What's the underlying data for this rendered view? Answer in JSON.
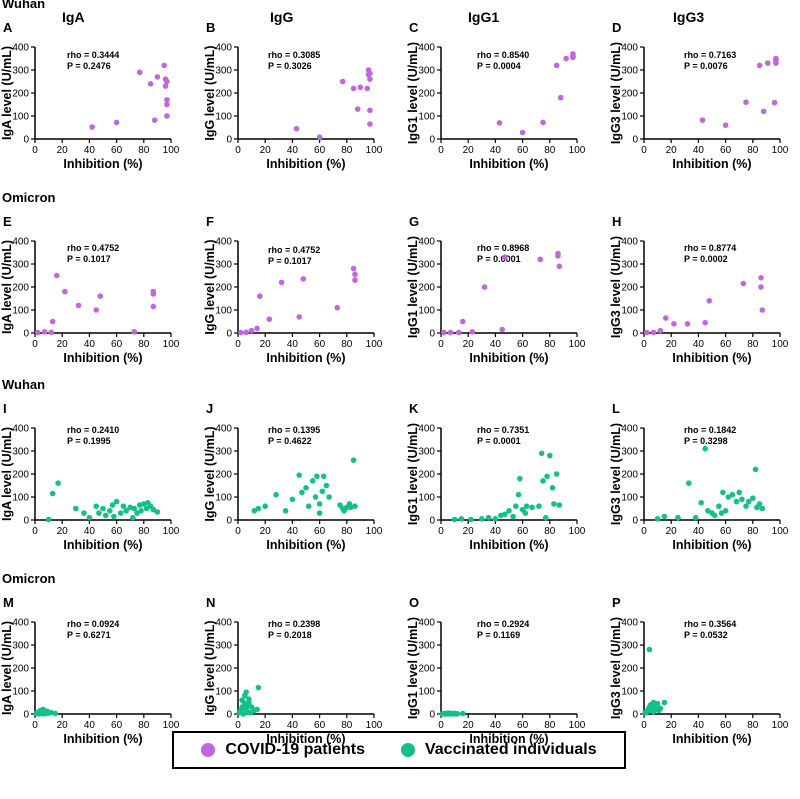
{
  "colors": {
    "covid": "#c266e0",
    "vaccinated": "#14c08a",
    "axis": "#000000"
  },
  "row_labels": [
    "Wuhan",
    "Omicron",
    "Wuhan",
    "Omicron"
  ],
  "column_titles": [
    "IgA",
    "IgG",
    "IgG1",
    "IgG3"
  ],
  "legend": {
    "covid_label": "COVID-19 patients",
    "vaccinated_label": "Vaccinated individuals"
  },
  "chart_data": [
    {
      "panel": "A",
      "type": "scatter",
      "group": "covid",
      "xlabel": "Inhibition (%)",
      "ylabel": "IgA level (U/mL)",
      "xlim": [
        0,
        100
      ],
      "ylim": [
        0,
        400
      ],
      "x_ticks": [
        "0",
        "20",
        "40",
        "60",
        "80",
        "100"
      ],
      "y_ticks": [
        "0",
        "100",
        "200",
        "300",
        "400"
      ],
      "rho": "rho = 0.3444",
      "p": "P = 0.2476",
      "x": [
        42,
        60,
        77,
        85,
        88,
        90,
        95,
        96,
        96,
        97,
        97,
        97,
        97
      ],
      "y": [
        52,
        72,
        290,
        240,
        82,
        270,
        320,
        260,
        230,
        150,
        170,
        100,
        250
      ]
    },
    {
      "panel": "B",
      "type": "scatter",
      "group": "covid",
      "xlabel": "Inhibition (%)",
      "ylabel": "IgG level (U/mL)",
      "xlim": [
        0,
        100
      ],
      "ylim": [
        0,
        400
      ],
      "x_ticks": [
        "0",
        "20",
        "40",
        "60",
        "80",
        "100"
      ],
      "y_ticks": [
        "0",
        "100",
        "200",
        "300",
        "400"
      ],
      "rho": "rho = 0.3085",
      "p": "P = 0.3026",
      "x": [
        43,
        60,
        77,
        85,
        88,
        90,
        95,
        96,
        96,
        97,
        97,
        97,
        97
      ],
      "y": [
        45,
        8,
        250,
        220,
        130,
        225,
        220,
        300,
        280,
        260,
        125,
        65,
        285
      ]
    },
    {
      "panel": "C",
      "type": "scatter",
      "group": "covid",
      "xlabel": "Inhibition (%)",
      "ylabel": "IgG1 level (U/mL)",
      "xlim": [
        0,
        100
      ],
      "ylim": [
        0,
        400
      ],
      "x_ticks": [
        "0",
        "20",
        "40",
        "60",
        "80",
        "100"
      ],
      "y_ticks": [
        "0",
        "100",
        "200",
        "300",
        "400"
      ],
      "rho": "rho = 0.8540",
      "p": "P = 0.0004",
      "x": [
        43,
        60,
        75,
        85,
        88,
        92,
        97,
        97,
        97
      ],
      "y": [
        70,
        28,
        72,
        320,
        180,
        350,
        355,
        360,
        370
      ]
    },
    {
      "panel": "D",
      "type": "scatter",
      "group": "covid",
      "xlabel": "Inhibition (%)",
      "ylabel": "IgG3 level (U/mL)",
      "xlim": [
        0,
        100
      ],
      "ylim": [
        0,
        400
      ],
      "x_ticks": [
        "0",
        "20",
        "40",
        "60",
        "80",
        "100"
      ],
      "y_ticks": [
        "0",
        "100",
        "200",
        "300",
        "400"
      ],
      "rho": "rho = 0.7163",
      "p": "P = 0.0076",
      "x": [
        43,
        60,
        75,
        85,
        88,
        91,
        96,
        97,
        97,
        97,
        97
      ],
      "y": [
        82,
        60,
        160,
        320,
        120,
        330,
        158,
        350,
        340,
        330,
        345
      ]
    },
    {
      "panel": "E",
      "type": "scatter",
      "group": "covid",
      "xlabel": "Inhibition (%)",
      "ylabel": "IgA level (U/mL)",
      "xlim": [
        0,
        100
      ],
      "ylim": [
        0,
        400
      ],
      "x_ticks": [
        "0",
        "20",
        "40",
        "60",
        "80",
        "100"
      ],
      "y_ticks": [
        "0",
        "100",
        "200",
        "300",
        "400"
      ],
      "rho": "rho = 0.4752",
      "p": "P = 0.1017",
      "x": [
        2,
        7,
        13,
        16,
        22,
        32,
        45,
        48,
        73,
        87,
        87,
        87,
        12
      ],
      "y": [
        2,
        5,
        50,
        250,
        180,
        120,
        100,
        160,
        5,
        180,
        170,
        115,
        3
      ]
    },
    {
      "panel": "F",
      "type": "scatter",
      "group": "covid",
      "xlabel": "Inhibition (%)",
      "ylabel": "IgG level (U/mL)",
      "xlim": [
        0,
        100
      ],
      "ylim": [
        0,
        400
      ],
      "x_ticks": [
        "0",
        "20",
        "40",
        "60",
        "80",
        "100"
      ],
      "y_ticks": [
        "0",
        "100",
        "200",
        "300",
        "400"
      ],
      "rho": "rho = 0.4752",
      "p": "P = 0.1017",
      "x": [
        2,
        6,
        10,
        14,
        16,
        23,
        32,
        45,
        48,
        73,
        85,
        86,
        86
      ],
      "y": [
        2,
        3,
        10,
        20,
        160,
        60,
        220,
        70,
        235,
        110,
        280,
        255,
        230
      ]
    },
    {
      "panel": "G",
      "type": "scatter",
      "group": "covid",
      "xlabel": "Inhibition (%)",
      "ylabel": "IgG1 level (U/mL)",
      "xlim": [
        0,
        100
      ],
      "ylim": [
        0,
        400
      ],
      "x_ticks": [
        "0",
        "20",
        "40",
        "60",
        "80",
        "100"
      ],
      "y_ticks": [
        "0",
        "100",
        "200",
        "300",
        "400"
      ],
      "rho": "rho = 0.8968",
      "p": "P = 0.0001",
      "x": [
        2,
        7,
        13,
        16,
        23,
        32,
        45,
        47,
        73,
        86,
        86,
        87
      ],
      "y": [
        2,
        2,
        2,
        50,
        5,
        200,
        15,
        330,
        320,
        345,
        335,
        290
      ]
    },
    {
      "panel": "H",
      "type": "scatter",
      "group": "covid",
      "xlabel": "Inhibition (%)",
      "ylabel": "IgG3 level (U/mL)",
      "xlim": [
        0,
        100
      ],
      "ylim": [
        0,
        400
      ],
      "x_ticks": [
        "0",
        "20",
        "40",
        "60",
        "80",
        "100"
      ],
      "y_ticks": [
        "0",
        "100",
        "200",
        "300",
        "400"
      ],
      "rho": "rho = 0.8774",
      "p": "P = 0.0002",
      "x": [
        2,
        7,
        12,
        16,
        22,
        32,
        45,
        48,
        73,
        86,
        86,
        87
      ],
      "y": [
        2,
        2,
        10,
        65,
        40,
        40,
        45,
        140,
        215,
        240,
        200,
        100
      ]
    },
    {
      "panel": "I",
      "type": "scatter",
      "group": "vaccinated",
      "xlabel": "Inhibition (%)",
      "ylabel": "IgA level (U/mL)",
      "xlim": [
        0,
        100
      ],
      "ylim": [
        0,
        400
      ],
      "x_ticks": [
        "0",
        "20",
        "40",
        "60",
        "80",
        "100"
      ],
      "y_ticks": [
        "0",
        "100",
        "200",
        "300",
        "400"
      ],
      "rho": "rho = 0.2410",
      "p": "P = 0.1995",
      "x": [
        10,
        13,
        17,
        30,
        36,
        40,
        45,
        47,
        50,
        52,
        55,
        57,
        58,
        60,
        63,
        65,
        67,
        70,
        72,
        73,
        75,
        77,
        78,
        80,
        82,
        83,
        85,
        87,
        90
      ],
      "y": [
        2,
        115,
        160,
        50,
        30,
        10,
        60,
        30,
        50,
        20,
        40,
        65,
        15,
        80,
        30,
        60,
        40,
        55,
        10,
        50,
        30,
        65,
        40,
        70,
        50,
        75,
        60,
        45,
        35
      ]
    },
    {
      "panel": "J",
      "type": "scatter",
      "group": "vaccinated",
      "xlabel": "Inhibition (%)",
      "ylabel": "IgG level (U/mL)",
      "xlim": [
        0,
        100
      ],
      "ylim": [
        0,
        400
      ],
      "x_ticks": [
        "0",
        "20",
        "40",
        "60",
        "80",
        "100"
      ],
      "y_ticks": [
        "0",
        "100",
        "200",
        "300",
        "400"
      ],
      "rho": "rho = 0.1395",
      "p": "P = 0.4622",
      "x": [
        12,
        15,
        20,
        28,
        35,
        40,
        45,
        47,
        50,
        52,
        55,
        57,
        58,
        60,
        60,
        62,
        63,
        65,
        67,
        75,
        77,
        78,
        80,
        82,
        83,
        85,
        86
      ],
      "y": [
        40,
        50,
        60,
        110,
        40,
        90,
        195,
        120,
        140,
        60,
        170,
        100,
        190,
        70,
        30,
        125,
        190,
        150,
        100,
        65,
        50,
        40,
        55,
        70,
        55,
        260,
        60
      ]
    },
    {
      "panel": "K",
      "type": "scatter",
      "group": "vaccinated",
      "xlabel": "Inhibition (%)",
      "ylabel": "IgG1 level (U/mL)",
      "xlim": [
        0,
        100
      ],
      "ylim": [
        0,
        400
      ],
      "x_ticks": [
        "0",
        "20",
        "40",
        "60",
        "80",
        "100"
      ],
      "y_ticks": [
        "0",
        "100",
        "200",
        "300",
        "400"
      ],
      "rho": "rho = 0.7351",
      "p": "P = 0.0001",
      "x": [
        10,
        15,
        22,
        30,
        35,
        40,
        44,
        47,
        50,
        53,
        55,
        57,
        58,
        60,
        62,
        63,
        67,
        72,
        74,
        75,
        77,
        78,
        80,
        82,
        83,
        85,
        87
      ],
      "y": [
        2,
        5,
        2,
        5,
        10,
        5,
        20,
        25,
        40,
        15,
        60,
        110,
        180,
        45,
        30,
        60,
        55,
        60,
        290,
        170,
        10,
        190,
        280,
        140,
        70,
        200,
        65
      ]
    },
    {
      "panel": "L",
      "type": "scatter",
      "group": "vaccinated",
      "xlabel": "Inhibition (%)",
      "ylabel": "IgG3 level (U/mL)",
      "xlim": [
        0,
        100
      ],
      "ylim": [
        0,
        400
      ],
      "x_ticks": [
        "0",
        "20",
        "40",
        "60",
        "80",
        "100"
      ],
      "y_ticks": [
        "0",
        "100",
        "200",
        "300",
        "400"
      ],
      "rho": "rho = 0.1842",
      "p": "P = 0.3298",
      "x": [
        10,
        15,
        25,
        33,
        38,
        42,
        45,
        47,
        50,
        52,
        55,
        57,
        58,
        60,
        62,
        65,
        68,
        70,
        72,
        75,
        77,
        80,
        82,
        83,
        85,
        87
      ],
      "y": [
        5,
        15,
        10,
        160,
        10,
        75,
        310,
        40,
        30,
        20,
        60,
        30,
        120,
        40,
        100,
        110,
        80,
        120,
        90,
        60,
        80,
        95,
        220,
        55,
        70,
        50
      ]
    },
    {
      "panel": "M",
      "type": "scatter",
      "group": "vaccinated",
      "xlabel": "Inhibition (%)",
      "ylabel": "IgA level (U/mL)",
      "xlim": [
        0,
        100
      ],
      "ylim": [
        0,
        400
      ],
      "x_ticks": [
        "0",
        "20",
        "40",
        "60",
        "80",
        "100"
      ],
      "y_ticks": [
        "0",
        "100",
        "200",
        "300",
        "400"
      ],
      "rho": "rho = 0.0924",
      "p": "P = 0.6271",
      "x": [
        1,
        2,
        3,
        3,
        4,
        5,
        5,
        6,
        6,
        7,
        8,
        9,
        10,
        12,
        15
      ],
      "y": [
        2,
        5,
        10,
        0,
        15,
        3,
        8,
        20,
        1,
        5,
        2,
        12,
        4,
        6,
        2
      ]
    },
    {
      "panel": "N",
      "type": "scatter",
      "group": "vaccinated",
      "xlabel": "Inhibition (%)",
      "ylabel": "IgG level (U/mL)",
      "xlim": [
        0,
        100
      ],
      "ylim": [
        0,
        400
      ],
      "x_ticks": [
        "0",
        "20",
        "40",
        "60",
        "80",
        "100"
      ],
      "y_ticks": [
        "0",
        "100",
        "200",
        "300",
        "400"
      ],
      "rho": "rho = 0.2398",
      "p": "P = 0.2018",
      "x": [
        1,
        2,
        3,
        3,
        4,
        5,
        5,
        6,
        6,
        7,
        7,
        8,
        8,
        9,
        10,
        12,
        14,
        15
      ],
      "y": [
        5,
        15,
        30,
        60,
        0,
        45,
        80,
        20,
        95,
        10,
        35,
        65,
        50,
        5,
        30,
        15,
        20,
        115
      ]
    },
    {
      "panel": "O",
      "type": "scatter",
      "group": "vaccinated",
      "xlabel": "Inhibition (%)",
      "ylabel": "IgG1 level (U/mL)",
      "xlim": [
        0,
        100
      ],
      "ylim": [
        0,
        400
      ],
      "x_ticks": [
        "0",
        "20",
        "40",
        "60",
        "80",
        "100"
      ],
      "y_ticks": [
        "0",
        "100",
        "200",
        "300",
        "400"
      ],
      "rho": "rho = 0.2924",
      "p": "P = 0.1169",
      "x": [
        1,
        2,
        3,
        4,
        5,
        5,
        6,
        7,
        8,
        9,
        10,
        11,
        12,
        16
      ],
      "y": [
        1,
        2,
        0,
        3,
        1,
        2,
        4,
        0,
        2,
        1,
        3,
        0,
        1,
        2
      ]
    },
    {
      "panel": "P",
      "type": "scatter",
      "group": "vaccinated",
      "xlabel": "Inhibition (%)",
      "ylabel": "IgG3 level (U/mL)",
      "xlim": [
        0,
        100
      ],
      "ylim": [
        0,
        400
      ],
      "x_ticks": [
        "0",
        "20",
        "40",
        "60",
        "80",
        "100"
      ],
      "y_ticks": [
        "0",
        "100",
        "200",
        "300",
        "400"
      ],
      "rho": "rho = 0.3564",
      "p": "P = 0.0532",
      "x": [
        1,
        2,
        3,
        4,
        4,
        5,
        5,
        6,
        7,
        7,
        8,
        9,
        10,
        11,
        12,
        15
      ],
      "y": [
        5,
        10,
        20,
        30,
        280,
        15,
        40,
        25,
        50,
        10,
        30,
        20,
        45,
        15,
        25,
        50
      ]
    }
  ]
}
